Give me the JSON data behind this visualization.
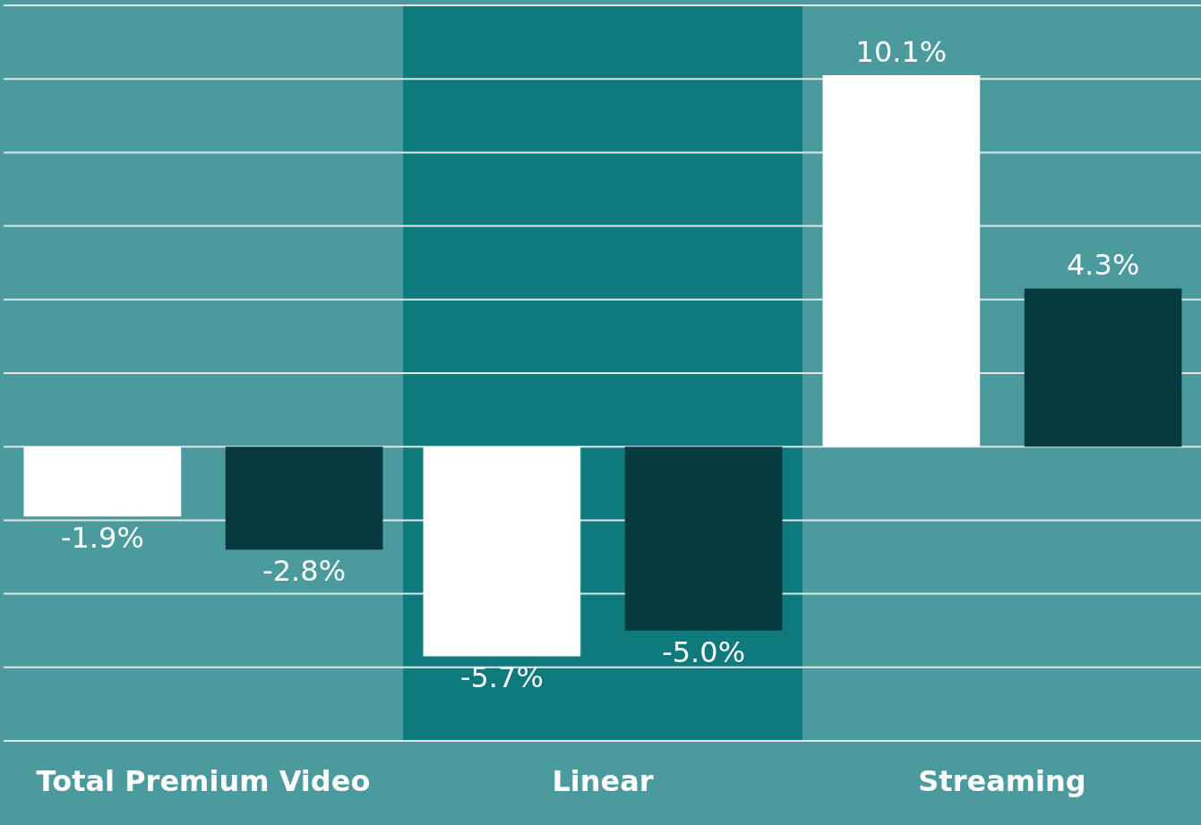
{
  "chart_data": {
    "type": "bar",
    "categories": [
      "Total Premium Video",
      "Linear",
      "Streaming"
    ],
    "series": [
      {
        "color": "#ffffff",
        "values": [
          -1.9,
          -5.7,
          10.1
        ],
        "value_labels": [
          "-1.9%",
          "-5.7%",
          "10.1%"
        ]
      },
      {
        "color": "#063a3e",
        "values": [
          -2.8,
          -5.0,
          4.3
        ],
        "value_labels": [
          "-2.8%",
          "-5.0%",
          "4.3%"
        ]
      }
    ],
    "ylim": [
      -8,
      12
    ],
    "yticks": [
      {
        "value": -8,
        "label": null
      },
      {
        "value": -6,
        "label": null
      },
      {
        "value": -4,
        "label": null
      },
      {
        "value": -2,
        "label": null
      },
      {
        "value": 0,
        "label": null
      },
      {
        "value": 2,
        "label": null
      },
      {
        "value": 4,
        "label": null
      },
      {
        "value": 6,
        "label": null
      },
      {
        "value": 8,
        "label": null
      },
      {
        "value": 10,
        "label": null
      },
      {
        "value": 12,
        "label": null
      }
    ],
    "bands": [
      {
        "axis": "x",
        "from": "Linear",
        "to": "Linear",
        "color": "#0e7a7d"
      }
    ],
    "grid": "y",
    "tick_labels": "x"
  }
}
